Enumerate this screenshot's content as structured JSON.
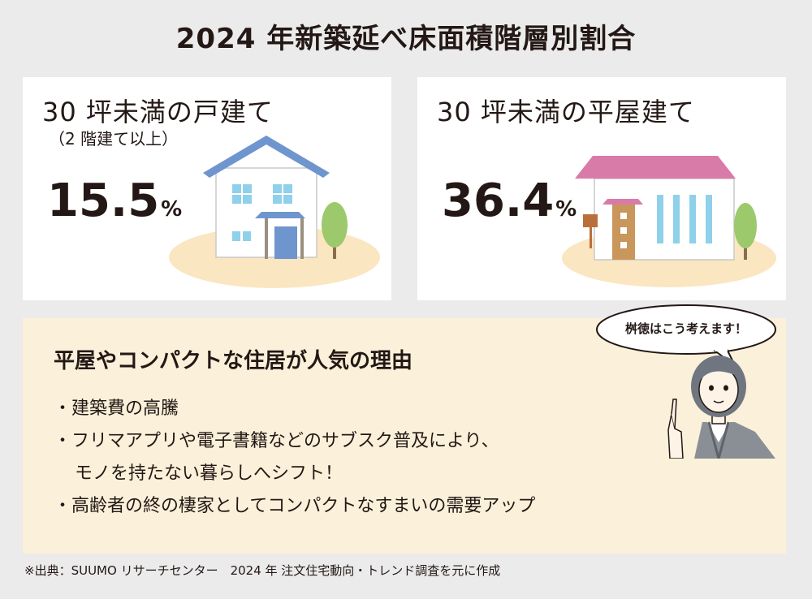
{
  "title": "2024 年新築延べ床面積階層別割合",
  "cards": [
    {
      "heading": "30 坪未満の戸建て",
      "subheading": "（2 階建て以上）",
      "percent": "15.5",
      "unit": "%"
    },
    {
      "heading": "30 坪未満の平屋建て",
      "percent": "36.4",
      "unit": "%"
    }
  ],
  "reasons": {
    "heading": "平屋やコンパクトな住居が人気の理由",
    "items": [
      "・建築費の高騰",
      "・フリマアプリや電子書籍などのサブスク普及により、",
      "モノを持たない暮らしへシフト！",
      "・高齢者の終の棲家としてコンパクトなすまいの需要アップ"
    ]
  },
  "bubble": {
    "text": "桝徳はこう考えます！"
  },
  "source": "※出典：SUUMO リサーチセンター　2024 年 注文住宅動向・トレンド調査を元に作成",
  "colors": {
    "background": "#ebebeb",
    "card": "#ffffff",
    "reasons_bg": "#fbf0d9",
    "ground": "#fbe6c2",
    "roof_blue": "#6f95cf",
    "roof_pink": "#d97ba8",
    "window_blue": "#8fd0ea",
    "tree": "#9cc96b"
  }
}
